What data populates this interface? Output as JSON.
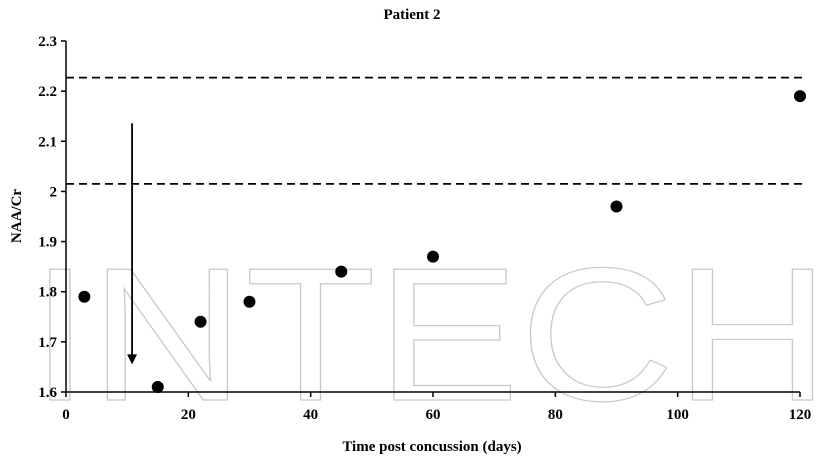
{
  "chart_data": {
    "type": "scatter",
    "title": "Patient 2",
    "xlabel": "Time post concussion (days)",
    "ylabel": "NAA/Cr",
    "xlim": [
      0,
      120
    ],
    "ylim": [
      1.6,
      2.3
    ],
    "xticks": [
      0,
      20,
      40,
      60,
      80,
      100,
      120
    ],
    "yticks": [
      1.6,
      1.7,
      1.8,
      1.9,
      2.0,
      2.1,
      2.2,
      2.3
    ],
    "xtick_labels": [
      "0",
      "20",
      "40",
      "60",
      "80",
      "100",
      "120"
    ],
    "ytick_labels": [
      "1.6",
      "1.7",
      "1.8",
      "1.9",
      "2",
      "2.1",
      "2.2",
      "2.3"
    ],
    "series": [
      {
        "x": [
          3,
          15,
          22,
          30,
          45,
          60,
          90,
          120
        ],
        "y": [
          1.79,
          1.61,
          1.74,
          1.78,
          1.84,
          1.87,
          1.97,
          2.19
        ]
      }
    ],
    "reference_lines": [
      {
        "y": 2.227,
        "style": "dashed"
      },
      {
        "y": 2.015,
        "style": "dashed"
      }
    ],
    "annotation_arrow": {
      "x": 10.8,
      "y_from": 2.136,
      "y_to": 1.655
    },
    "grid": false,
    "legend": "none",
    "marker_color": "#000000"
  },
  "watermark": {
    "text": "INTECH",
    "color": "#c8c8c8"
  }
}
